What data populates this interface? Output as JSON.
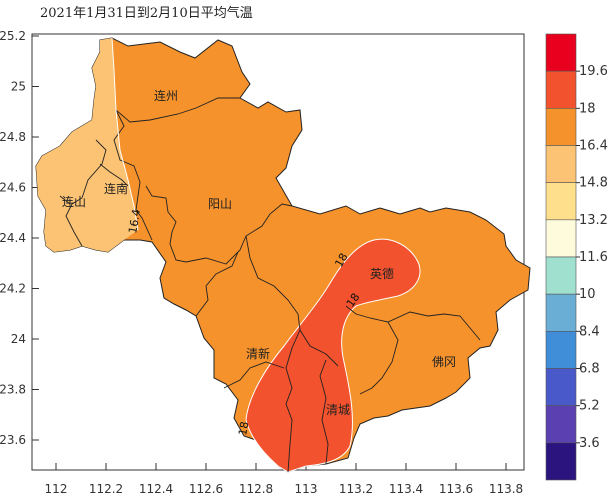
{
  "title": "2021年1月31日到2月10日平均气温",
  "x_ticks": [
    "112",
    "112.2",
    "112.4",
    "112.6",
    "112.8",
    "113",
    "113.2",
    "113.4",
    "113.6",
    "113.8"
  ],
  "y_ticks": [
    "25.2",
    "25",
    "24.8",
    "24.6",
    "24.4",
    "24.2",
    "24",
    "23.8",
    "23.6"
  ],
  "cities": {
    "lianzhou": "连州",
    "lianshan": "连山",
    "liannan": "连南",
    "yangshan": "阳山",
    "yingde": "英德",
    "qingxin": "清新",
    "qingcheng": "清城",
    "fogang": "佛冈"
  },
  "isolines": {
    "west": "16.4",
    "north": "18",
    "mid": "18",
    "south": "18"
  },
  "colorbar": {
    "labels": [
      "19.6",
      "18",
      "16.4",
      "14.8",
      "13.2",
      "11.6",
      "10",
      "8.4",
      "6.8",
      "5.2",
      "3.6"
    ],
    "colors": [
      "#e8001e",
      "#f2522d",
      "#f5922b",
      "#fbc373",
      "#fee08c",
      "#fdfbdc",
      "#9fe0cf",
      "#6aaed6",
      "#3f8ed7",
      "#4a59c9",
      "#5a40b0",
      "#2c147f"
    ]
  },
  "region_colors": {
    "cool": "#fbc373",
    "mid": "#f5922b",
    "warm": "#f2522d"
  }
}
